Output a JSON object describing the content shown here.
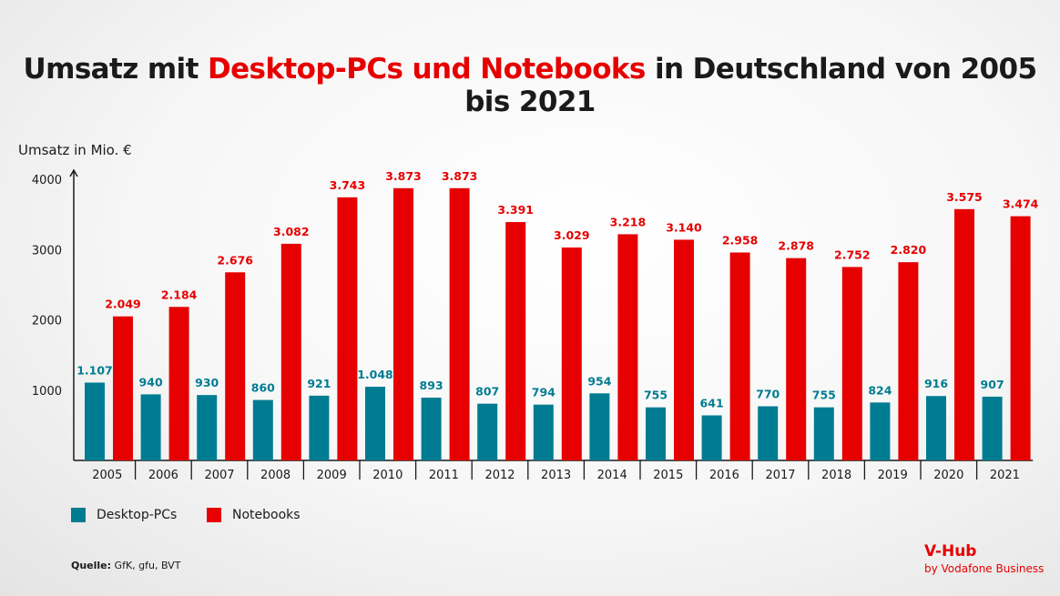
{
  "title": {
    "part1": "Umsatz mit ",
    "highlight": "Desktop-PCs und Notebooks",
    "part2": " in Deutschland von 2005 bis 2021"
  },
  "chart_data": {
    "type": "bar",
    "title": "Umsatz mit Desktop-PCs und Notebooks in Deutschland von 2005 bis 2021",
    "xlabel": "",
    "ylabel": "Umsatz in Mio. €",
    "ylim": [
      0,
      4000
    ],
    "yticks": [
      "1000",
      "2000",
      "3000",
      "4000"
    ],
    "grid": false,
    "legend": "bottom-left",
    "categories": [
      "2005",
      "2006",
      "2007",
      "2008",
      "2009",
      "2010",
      "2011",
      "2012",
      "2013",
      "2014",
      "2015",
      "2016",
      "2017",
      "2018",
      "2019",
      "2020",
      "2021"
    ],
    "series": [
      {
        "name": "Desktop-PCs",
        "color": "#007c92",
        "values": [
          1107,
          940,
          930,
          860,
          921,
          1048,
          893,
          807,
          794,
          954,
          755,
          641,
          770,
          755,
          824,
          916,
          907
        ],
        "labels": [
          "1.107",
          "940",
          "930",
          "860",
          "921",
          "1.048",
          "893",
          "807",
          "794",
          "954",
          "755",
          "641",
          "770",
          "755",
          "824",
          "916",
          "907"
        ]
      },
      {
        "name": "Notebooks",
        "color": "#e60000",
        "values": [
          2049,
          2184,
          2676,
          3082,
          3743,
          3873,
          3873,
          3391,
          3029,
          3218,
          3140,
          2958,
          2878,
          2752,
          2820,
          3575,
          3474
        ],
        "labels": [
          "2.049",
          "2.184",
          "2.676",
          "3.082",
          "3.743",
          "3.873",
          "3.873",
          "3.391",
          "3.029",
          "3.218",
          "3.140",
          "2.958",
          "2.878",
          "2.752",
          "2.820",
          "3.575",
          "3.474"
        ]
      }
    ]
  },
  "legend": {
    "desktop": "Desktop-PCs",
    "notebooks": "Notebooks"
  },
  "source": {
    "label": "Quelle:",
    "text": " GfK, gfu, BVT"
  },
  "logo": {
    "name": "V-Hub",
    "sub": "by Vodafone Business"
  }
}
